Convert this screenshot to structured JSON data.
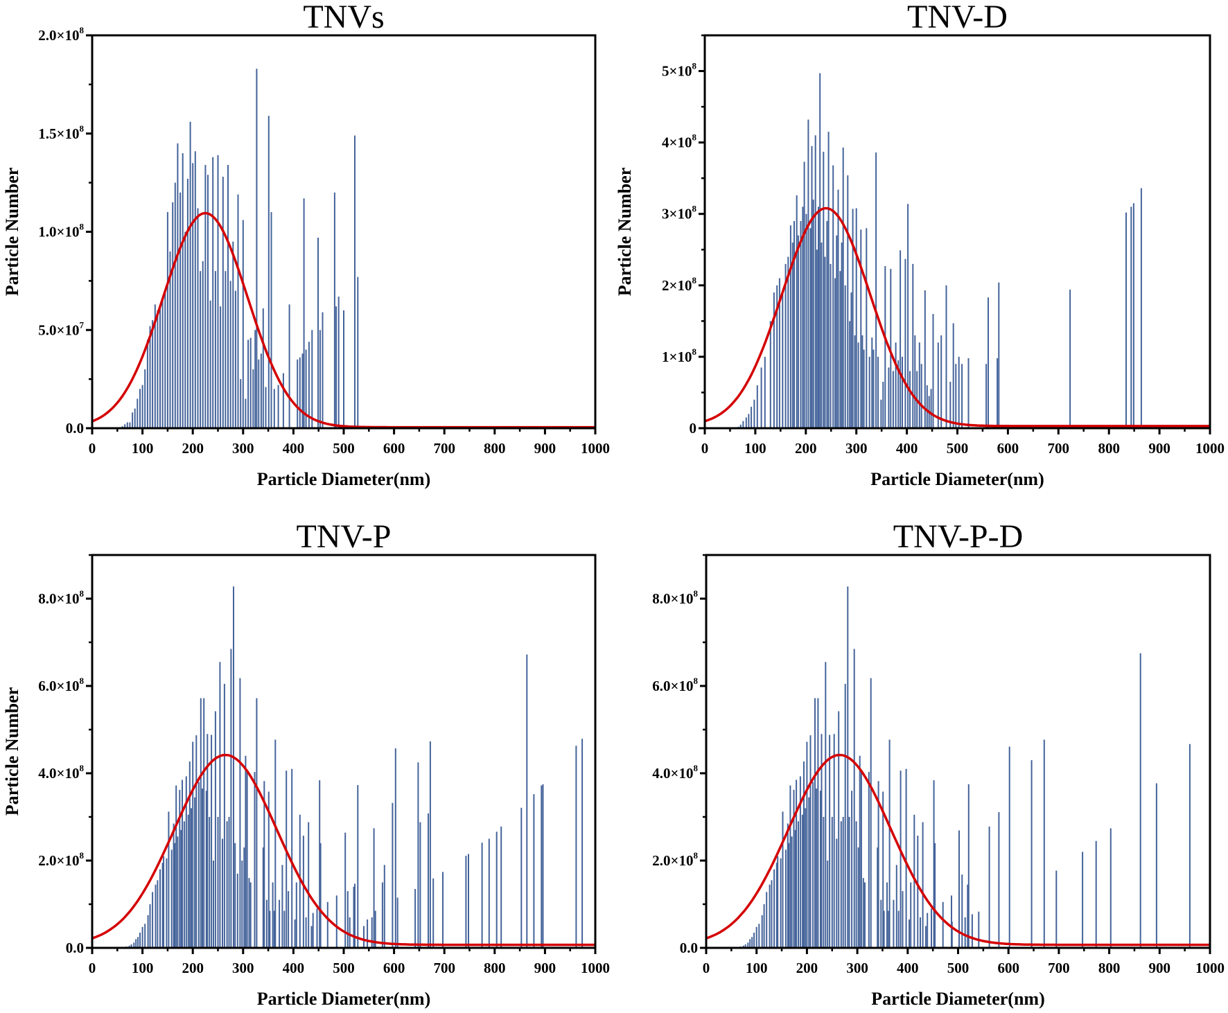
{
  "chart_data": [
    {
      "type": "bar",
      "title": "TNVs",
      "xlabel": "Particle Diameter(nm)",
      "ylabel": "Particle Number",
      "xlim": [
        0,
        1000
      ],
      "ylim": [
        0,
        2.0
      ],
      "y_unit_multiplier": 100000000,
      "xticks": [
        "0",
        "100",
        "200",
        "300",
        "400",
        "500",
        "600",
        "700",
        "800",
        "900",
        "1000"
      ],
      "yticks": [
        {
          "value": 0,
          "base": "0.0",
          "exp": ""
        },
        {
          "value": 0.5,
          "base": "5.0×10",
          "exp": "7"
        },
        {
          "value": 1.0,
          "base": "1.0×10",
          "exp": "8"
        },
        {
          "value": 1.5,
          "base": "1.5×10",
          "exp": "8"
        },
        {
          "value": 2.0,
          "base": "2.0×10",
          "exp": "8"
        }
      ],
      "grid": false,
      "series_color": "#44639a",
      "fit": {
        "name": "Gaussian fit",
        "color": "#d40000",
        "amplitude": 1.09,
        "center": 225,
        "sigma": 84,
        "baseline": 0.005
      },
      "bars": {
        "x": [
          60,
          65,
          70,
          75,
          80,
          85,
          90,
          95,
          100,
          105,
          110,
          115,
          120,
          125,
          130,
          135,
          140,
          145,
          150,
          155,
          160,
          165,
          170,
          175,
          180,
          185,
          190,
          195,
          200,
          205,
          210,
          215,
          220,
          225,
          230,
          235,
          240,
          245,
          250,
          255,
          260,
          265,
          270,
          275,
          280,
          285,
          290,
          295,
          300,
          305,
          310,
          315,
          320,
          324,
          327,
          331,
          336,
          340,
          345,
          351,
          356,
          362,
          370,
          380,
          392,
          408,
          413,
          418,
          421,
          425,
          431,
          437,
          449,
          453,
          458,
          482,
          485,
          490,
          500,
          522,
          528
        ],
        "y": [
          0.01,
          0.02,
          0.03,
          0.03,
          0.08,
          0.1,
          0.15,
          0.2,
          0.22,
          0.3,
          0.45,
          0.52,
          0.55,
          0.63,
          0.6,
          0.62,
          0.65,
          0.7,
          1.1,
          0.9,
          1.15,
          1.25,
          1.45,
          1.2,
          1.4,
          1.0,
          1.27,
          1.56,
          1.35,
          1.41,
          1.12,
          0.8,
          0.85,
          1.34,
          1.29,
          0.65,
          1.38,
          0.8,
          1.39,
          0.62,
          1.28,
          0.8,
          1.34,
          0.75,
          0.95,
          0.7,
          1.19,
          0.25,
          1.06,
          0.15,
          0.45,
          0.46,
          0.3,
          0.5,
          1.83,
          0.35,
          0.38,
          0.61,
          0.21,
          1.59,
          1.1,
          0.2,
          0.22,
          0.28,
          0.63,
          0.35,
          0.36,
          0.38,
          1.17,
          0.4,
          0.44,
          0.5,
          0.97,
          0.5,
          0.59,
          1.2,
          0.62,
          0.67,
          0.6,
          1.49,
          0.77
        ]
      }
    },
    {
      "type": "bar",
      "title": "TNV-D",
      "xlabel": "Particle Diameter(nm)",
      "ylabel": "Particle Number",
      "xlim": [
        0,
        1000
      ],
      "ylim": [
        0,
        5.5
      ],
      "y_unit_multiplier": 100000000,
      "xticks": [
        "0",
        "100",
        "200",
        "300",
        "400",
        "500",
        "600",
        "700",
        "800",
        "900",
        "1000"
      ],
      "yticks": [
        {
          "value": 0,
          "base": "0",
          "exp": ""
        },
        {
          "value": 1,
          "base": "1×10",
          "exp": "8"
        },
        {
          "value": 2,
          "base": "2×10",
          "exp": "8"
        },
        {
          "value": 3,
          "base": "3×10",
          "exp": "8"
        },
        {
          "value": 4,
          "base": "4×10",
          "exp": "8"
        },
        {
          "value": 5,
          "base": "5×10",
          "exp": "8"
        }
      ],
      "grid": false,
      "series_color": "#44639a",
      "fit": {
        "name": "Gaussian fit",
        "color": "#d40000",
        "amplitude": 3.05,
        "center": 240,
        "sigma": 87,
        "baseline": 0.03
      },
      "bars": {
        "x": [
          67,
          71,
          76,
          82,
          87,
          92,
          98,
          104,
          112,
          119,
          130,
          137,
          143,
          148,
          154,
          160,
          165,
          170,
          174,
          177,
          182,
          185,
          190,
          194,
          197,
          201,
          205,
          209,
          212,
          215,
          219,
          222,
          225,
          228,
          231,
          235,
          238,
          242,
          245,
          249,
          254,
          258,
          261,
          264,
          268,
          271,
          274,
          278,
          283,
          287,
          290,
          293,
          297,
          300,
          304,
          309,
          312,
          315,
          320,
          326,
          331,
          334,
          339,
          343,
          349,
          353,
          357,
          364,
          368,
          373,
          378,
          383,
          387,
          391,
          397,
          402,
          406,
          412,
          416,
          420,
          425,
          429,
          436,
          440,
          444,
          448,
          452,
          462,
          468,
          478,
          486,
          492,
          497,
          503,
          509,
          522,
          557,
          561,
          579,
          582,
          723,
          834,
          844,
          849,
          864
        ],
        "y": [
          0.02,
          0.05,
          0.1,
          0.15,
          0.2,
          0.3,
          0.4,
          0.6,
          0.85,
          1.0,
          1.5,
          1.9,
          2.0,
          2.1,
          1.9,
          2.3,
          2.4,
          2.84,
          2.6,
          2.9,
          3.26,
          2.7,
          2.9,
          3.1,
          3.73,
          3.0,
          4.32,
          2.8,
          3.95,
          3.2,
          4.1,
          2.5,
          3.1,
          4.97,
          2.6,
          3.87,
          2.4,
          2.9,
          4.15,
          2.3,
          3.68,
          2.1,
          2.7,
          3.34,
          2.2,
          2.6,
          3.93,
          2.0,
          3.54,
          1.5,
          1.9,
          3.07,
          1.3,
          3.08,
          1.2,
          2.78,
          1.3,
          1.1,
          2.8,
          1.0,
          1.27,
          1.1,
          3.86,
          1.0,
          0.4,
          0.65,
          2.27,
          0.85,
          2.23,
          0.8,
          1.2,
          0.95,
          2.49,
          1.0,
          2.37,
          3.14,
          0.8,
          2.3,
          1.3,
          0.8,
          1.2,
          0.9,
          1.93,
          0.6,
          0.45,
          0.55,
          1.6,
          1.2,
          1.3,
          2.0,
          0.65,
          1.47,
          0.9,
          1.0,
          0.9,
          0.98,
          0.9,
          1.83,
          0.98,
          2.04,
          1.94,
          3.02,
          3.1,
          3.15,
          3.36
        ]
      }
    },
    {
      "type": "bar",
      "title": "TNV-P",
      "xlabel": "Particle Diameter(nm)",
      "ylabel": "Particle Number",
      "xlim": [
        0,
        1000
      ],
      "ylim": [
        0,
        9.0
      ],
      "y_unit_multiplier": 100000000,
      "xticks": [
        "0",
        "100",
        "200",
        "300",
        "400",
        "500",
        "600",
        "700",
        "800",
        "900",
        "1000"
      ],
      "yticks": [
        {
          "value": 0,
          "base": "0.0",
          "exp": ""
        },
        {
          "value": 2,
          "base": "2.0×10",
          "exp": "8"
        },
        {
          "value": 4,
          "base": "4.0×10",
          "exp": "8"
        },
        {
          "value": 6,
          "base": "6.0×10",
          "exp": "8"
        },
        {
          "value": 8,
          "base": "8.0×10",
          "exp": "8"
        }
      ],
      "grid": false,
      "series_color": "#44639a",
      "fit": {
        "name": "Gaussian fit",
        "color": "#d40000",
        "amplitude": 4.35,
        "center": 265,
        "sigma": 102,
        "baseline": 0.07
      },
      "bars": {
        "x": [
          57,
          63,
          68,
          74,
          78,
          83,
          87,
          91,
          95,
          100,
          105,
          111,
          115,
          120,
          126,
          130,
          135,
          140,
          142,
          148,
          152,
          158,
          162,
          164,
          167,
          170,
          174,
          177,
          179,
          183,
          187,
          191,
          194,
          197,
          200,
          204,
          207,
          212,
          216,
          219,
          222,
          227,
          229,
          233,
          237,
          241,
          245,
          250,
          254,
          259,
          263,
          268,
          272,
          276,
          281,
          284,
          289,
          294,
          298,
          302,
          305,
          308,
          312,
          315,
          323,
          327,
          340,
          342,
          347,
          351,
          353,
          359,
          362,
          364,
          372,
          378,
          382,
          386,
          390,
          397,
          403,
          406,
          413,
          420,
          425,
          430,
          436,
          439,
          447,
          452,
          454,
          468,
          486,
          503,
          508,
          512,
          520,
          522,
          528,
          540,
          547,
          556,
          560,
          563,
          577,
          581,
          597,
          603,
          607,
          642,
          648,
          652,
          668,
          672,
          678,
          697,
          743,
          748,
          775,
          789,
          804,
          813,
          853,
          864,
          878,
          893,
          896,
          962,
          974
        ],
        "y": [
          0.01,
          0.02,
          0.03,
          0.05,
          0.08,
          0.12,
          0.2,
          0.25,
          0.35,
          0.48,
          0.55,
          0.75,
          1.0,
          1.28,
          1.45,
          1.55,
          1.8,
          1.95,
          2.1,
          2.05,
          3.12,
          2.25,
          2.85,
          2.4,
          3.72,
          2.55,
          3.62,
          2.7,
          3.85,
          2.9,
          3.93,
          3.05,
          4.27,
          3.2,
          4.72,
          3.45,
          4.87,
          3.8,
          5.72,
          3.65,
          5.72,
          3.6,
          4.9,
          3.0,
          4.88,
          2.0,
          5.42,
          3.0,
          6.55,
          2.5,
          6.05,
          2.9,
          3.0,
          6.85,
          8.28,
          2.4,
          1.7,
          6.18,
          2.0,
          2.3,
          4.4,
          4.03,
          1.6,
          1.5,
          4.03,
          5.72,
          2.3,
          3.82,
          1.1,
          3.58,
          0.85,
          1.5,
          0.85,
          4.77,
          1.1,
          1.9,
          0.85,
          4.06,
          1.3,
          4.1,
          0.65,
          1.5,
          3.05,
          2.57,
          0.7,
          2.88,
          0.5,
          0.8,
          0.9,
          3.84,
          2.4,
          1.05,
          1.2,
          2.64,
          1.3,
          0.7,
          1.4,
          1.47,
          3.73,
          0.5,
          0.65,
          0.7,
          2.74,
          0.85,
          1.5,
          1.9,
          3.32,
          4.57,
          1.15,
          1.35,
          4.25,
          2.88,
          3.08,
          4.73,
          1.59,
          1.74,
          2.11,
          2.15,
          2.41,
          2.5,
          2.66,
          2.78,
          3.21,
          6.72,
          3.52,
          3.72,
          3.75,
          4.63,
          4.79
        ]
      }
    },
    {
      "type": "bar",
      "title": "TNV-P-D",
      "xlabel": "Particle Diameter(nm)",
      "ylabel": "",
      "xlim": [
        0,
        1000
      ],
      "ylim": [
        0,
        9.0
      ],
      "y_unit_multiplier": 100000000,
      "xticks": [
        "0",
        "100",
        "200",
        "300",
        "400",
        "500",
        "600",
        "700",
        "800",
        "900",
        "1000"
      ],
      "yticks": [
        {
          "value": 0,
          "base": "0.0",
          "exp": ""
        },
        {
          "value": 2,
          "base": "2.0×10",
          "exp": "8"
        },
        {
          "value": 4,
          "base": "4.0×10",
          "exp": "8"
        },
        {
          "value": 6,
          "base": "6.0×10",
          "exp": "8"
        },
        {
          "value": 8,
          "base": "8.0×10",
          "exp": "8"
        }
      ],
      "grid": false,
      "series_color": "#44639a",
      "fit": {
        "name": "Gaussian fit",
        "color": "#d40000",
        "amplitude": 4.35,
        "center": 265,
        "sigma": 102,
        "baseline": 0.07
      },
      "bars": {
        "x": [
          57,
          63,
          68,
          74,
          78,
          83,
          87,
          91,
          95,
          100,
          105,
          111,
          115,
          120,
          126,
          130,
          135,
          140,
          142,
          148,
          152,
          158,
          162,
          164,
          167,
          170,
          174,
          177,
          179,
          183,
          187,
          191,
          194,
          197,
          200,
          204,
          207,
          212,
          216,
          219,
          222,
          227,
          229,
          233,
          237,
          241,
          245,
          250,
          254,
          259,
          263,
          268,
          272,
          276,
          281,
          284,
          289,
          294,
          298,
          302,
          305,
          308,
          312,
          315,
          323,
          327,
          340,
          342,
          347,
          351,
          353,
          359,
          362,
          364,
          372,
          378,
          382,
          386,
          390,
          397,
          403,
          406,
          413,
          420,
          425,
          430,
          436,
          439,
          447,
          452,
          454,
          470,
          487,
          488,
          502,
          508,
          514,
          519,
          521,
          528,
          541,
          562,
          581,
          602,
          646,
          671,
          695,
          747,
          774,
          803,
          862,
          894,
          960
        ],
        "y": [
          0.01,
          0.02,
          0.03,
          0.05,
          0.08,
          0.12,
          0.2,
          0.25,
          0.35,
          0.48,
          0.55,
          0.75,
          1.0,
          1.28,
          1.45,
          1.55,
          1.8,
          1.95,
          2.1,
          2.05,
          3.12,
          2.25,
          2.85,
          2.4,
          3.72,
          2.55,
          3.62,
          2.7,
          3.85,
          2.9,
          3.93,
          3.05,
          4.27,
          3.2,
          4.72,
          3.45,
          4.87,
          3.8,
          5.72,
          3.65,
          5.72,
          3.6,
          4.9,
          3.0,
          6.55,
          2.0,
          4.88,
          3.0,
          4.9,
          2.5,
          5.42,
          2.9,
          3.0,
          6.05,
          8.28,
          3.0,
          3.6,
          6.85,
          2.9,
          2.3,
          4.4,
          4.03,
          1.6,
          1.5,
          4.03,
          6.18,
          2.3,
          3.82,
          1.1,
          3.58,
          0.85,
          1.5,
          0.85,
          4.77,
          1.1,
          1.9,
          0.85,
          4.06,
          1.3,
          4.1,
          0.65,
          1.5,
          3.05,
          2.57,
          0.7,
          2.88,
          0.5,
          0.8,
          0.9,
          3.84,
          2.4,
          1.05,
          1.2,
          0.6,
          2.69,
          1.68,
          0.7,
          1.45,
          3.75,
          0.77,
          0.83,
          2.78,
          3.11,
          4.61,
          4.3,
          4.77,
          1.77,
          2.2,
          2.45,
          2.74,
          6.75,
          3.77,
          4.67
        ]
      }
    }
  ]
}
